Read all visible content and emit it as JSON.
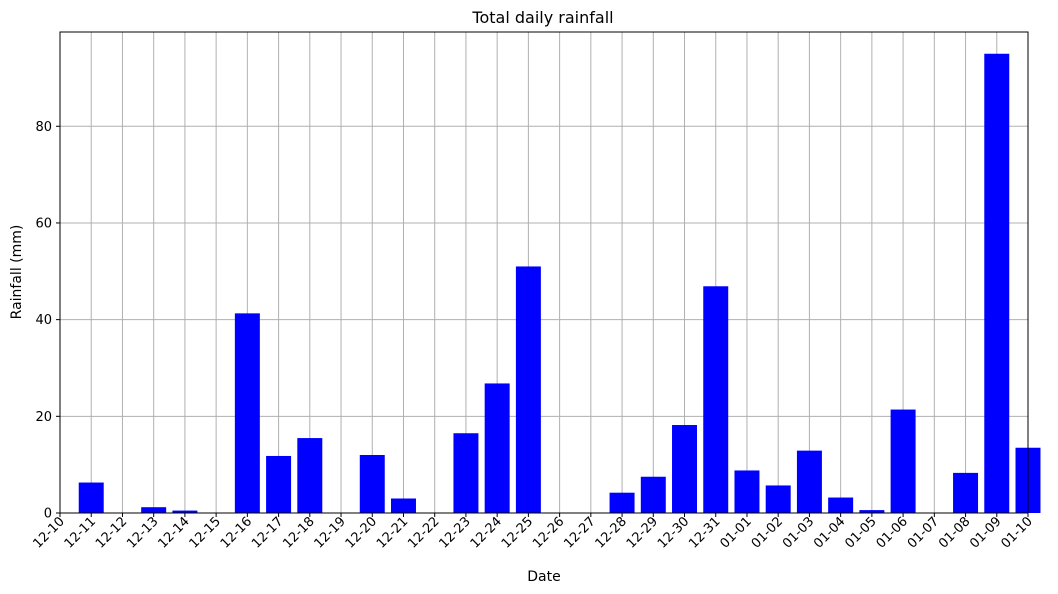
{
  "chart_data": {
    "type": "bar",
    "title": "Total daily rainfall",
    "xlabel": "Date",
    "ylabel": "Rainfall (mm)",
    "x_ticks": [
      "12-10",
      "12-11",
      "12-12",
      "12-13",
      "12-14",
      "12-15",
      "12-16",
      "12-17",
      "12-18",
      "12-19",
      "12-20",
      "12-21",
      "12-22",
      "12-23",
      "12-24",
      "12-25",
      "12-26",
      "12-27",
      "12-28",
      "12-29",
      "12-30",
      "12-31",
      "01-01",
      "01-02",
      "01-03",
      "01-04",
      "01-05",
      "01-06",
      "01-07",
      "01-08",
      "01-09",
      "01-10"
    ],
    "categories": [
      "12-11",
      "12-12",
      "12-13",
      "12-14",
      "12-15",
      "12-16",
      "12-17",
      "12-18",
      "12-19",
      "12-20",
      "12-21",
      "12-22",
      "12-23",
      "12-24",
      "12-25",
      "12-26",
      "12-27",
      "12-28",
      "12-29",
      "12-30",
      "12-31",
      "01-01",
      "01-02",
      "01-03",
      "01-04",
      "01-05",
      "01-06",
      "01-07",
      "01-08",
      "01-09",
      "01-10"
    ],
    "values": [
      6.3,
      0,
      1.2,
      0.5,
      0,
      41.3,
      11.8,
      15.5,
      0,
      12.0,
      3.0,
      0,
      16.5,
      26.8,
      51.0,
      0,
      0,
      4.2,
      7.5,
      18.2,
      46.9,
      8.8,
      5.7,
      12.9,
      3.2,
      0.6,
      21.4,
      0,
      8.3,
      95.0,
      13.5
    ],
    "y_ticks": [
      0,
      20,
      40,
      60,
      80
    ],
    "ylim": [
      0,
      99.5
    ],
    "bar_color": "#0000ff",
    "grid": true
  }
}
